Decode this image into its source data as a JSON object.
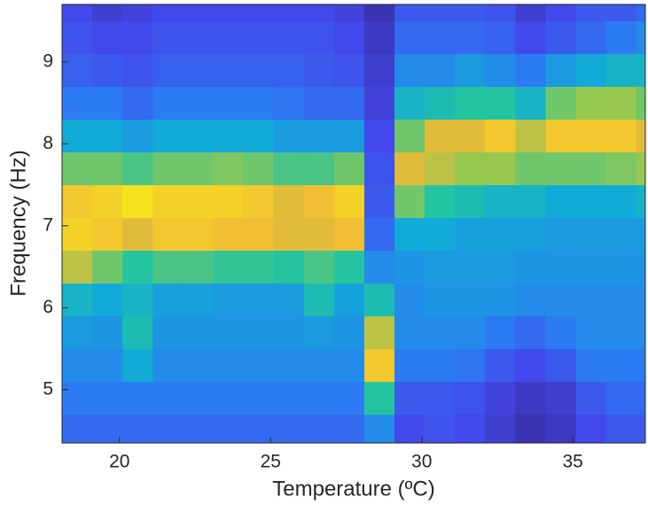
{
  "chart_data": {
    "type": "heatmap",
    "colormap": "parula",
    "xlabel": "Temperature (ºC)",
    "ylabel": "Frequency (Hz)",
    "xlim": [
      18.1,
      37.4
    ],
    "ylim": [
      4.35,
      9.7
    ],
    "xticks": [
      20,
      25,
      30,
      35
    ],
    "yticks": [
      5,
      6,
      7,
      8,
      9
    ],
    "xbins": [
      18.1,
      19.1,
      20.1,
      21.1,
      22.1,
      23.1,
      24.1,
      25.1,
      26.1,
      27.1,
      28.1,
      29.1,
      30.1,
      31.1,
      32.1,
      33.1,
      34.1,
      35.1,
      36.1,
      37.1,
      37.4
    ],
    "ybins": [
      4.35,
      4.7,
      5.1,
      5.5,
      5.9,
      6.3,
      6.7,
      7.1,
      7.5,
      7.9,
      8.3,
      8.7,
      9.1,
      9.5,
      9.7
    ],
    "z": [
      [
        0.25,
        0.25,
        0.25,
        0.25,
        0.25,
        0.25,
        0.25,
        0.25,
        0.25,
        0.25,
        0.35,
        0.15,
        0.18,
        0.15,
        0.1,
        0.05,
        0.08,
        0.15,
        0.2,
        0.2
      ],
      [
        0.3,
        0.3,
        0.3,
        0.3,
        0.3,
        0.3,
        0.3,
        0.3,
        0.3,
        0.3,
        0.6,
        0.2,
        0.2,
        0.18,
        0.12,
        0.08,
        0.1,
        0.2,
        0.25,
        0.25
      ],
      [
        0.35,
        0.35,
        0.45,
        0.35,
        0.35,
        0.35,
        0.35,
        0.35,
        0.35,
        0.35,
        0.9,
        0.3,
        0.3,
        0.28,
        0.2,
        0.15,
        0.2,
        0.3,
        0.3,
        0.3
      ],
      [
        0.4,
        0.38,
        0.55,
        0.38,
        0.38,
        0.38,
        0.38,
        0.38,
        0.4,
        0.38,
        0.8,
        0.35,
        0.35,
        0.35,
        0.3,
        0.25,
        0.3,
        0.35,
        0.35,
        0.35
      ],
      [
        0.5,
        0.45,
        0.5,
        0.42,
        0.42,
        0.4,
        0.4,
        0.4,
        0.55,
        0.42,
        0.55,
        0.35,
        0.38,
        0.38,
        0.38,
        0.35,
        0.35,
        0.35,
        0.35,
        0.35
      ],
      [
        0.8,
        0.7,
        0.6,
        0.65,
        0.65,
        0.62,
        0.62,
        0.6,
        0.65,
        0.6,
        0.35,
        0.38,
        0.4,
        0.4,
        0.4,
        0.38,
        0.38,
        0.38,
        0.38,
        0.38
      ],
      [
        0.92,
        0.9,
        0.85,
        0.9,
        0.9,
        0.88,
        0.88,
        0.85,
        0.85,
        0.88,
        0.25,
        0.45,
        0.45,
        0.42,
        0.42,
        0.42,
        0.4,
        0.4,
        0.4,
        0.4
      ],
      [
        0.9,
        0.92,
        0.95,
        0.92,
        0.92,
        0.92,
        0.9,
        0.85,
        0.88,
        0.92,
        0.2,
        0.7,
        0.6,
        0.55,
        0.5,
        0.5,
        0.45,
        0.45,
        0.45,
        0.5
      ],
      [
        0.7,
        0.7,
        0.65,
        0.7,
        0.7,
        0.72,
        0.7,
        0.65,
        0.65,
        0.7,
        0.18,
        0.85,
        0.8,
        0.75,
        0.75,
        0.7,
        0.7,
        0.7,
        0.72,
        0.75
      ],
      [
        0.45,
        0.45,
        0.4,
        0.45,
        0.45,
        0.45,
        0.45,
        0.4,
        0.4,
        0.4,
        0.15,
        0.7,
        0.85,
        0.85,
        0.9,
        0.8,
        0.9,
        0.9,
        0.9,
        0.85
      ],
      [
        0.3,
        0.3,
        0.25,
        0.3,
        0.3,
        0.3,
        0.3,
        0.28,
        0.25,
        0.25,
        0.12,
        0.5,
        0.55,
        0.6,
        0.6,
        0.5,
        0.7,
        0.75,
        0.75,
        0.7
      ],
      [
        0.22,
        0.2,
        0.18,
        0.22,
        0.22,
        0.22,
        0.22,
        0.22,
        0.2,
        0.18,
        0.1,
        0.35,
        0.35,
        0.4,
        0.35,
        0.3,
        0.4,
        0.45,
        0.5,
        0.5
      ],
      [
        0.18,
        0.15,
        0.15,
        0.18,
        0.18,
        0.18,
        0.18,
        0.18,
        0.18,
        0.15,
        0.08,
        0.25,
        0.25,
        0.25,
        0.22,
        0.15,
        0.2,
        0.25,
        0.3,
        0.35
      ],
      [
        0.15,
        0.1,
        0.12,
        0.15,
        0.15,
        0.15,
        0.15,
        0.15,
        0.15,
        0.12,
        0.05,
        0.2,
        0.2,
        0.2,
        0.18,
        0.1,
        0.15,
        0.2,
        0.2,
        0.25
      ]
    ]
  }
}
